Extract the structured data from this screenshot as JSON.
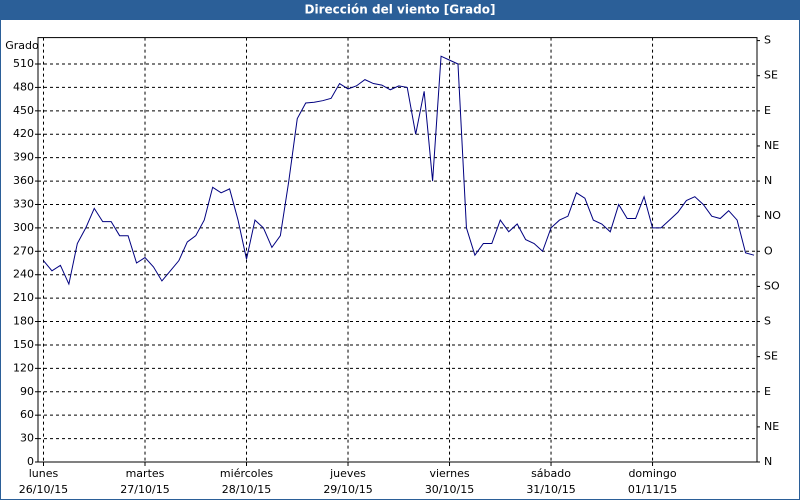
{
  "chart_data": {
    "type": "line",
    "title": "Dirección del viento [Grado]",
    "y_label": "Grado",
    "x": [
      0,
      2,
      4,
      6,
      8,
      10,
      12,
      14,
      16,
      18,
      20,
      22,
      24,
      26,
      28,
      30,
      32,
      34,
      36,
      38,
      40,
      42,
      44,
      46,
      48,
      50,
      52,
      54,
      56,
      58,
      60,
      62,
      64,
      66,
      68,
      70,
      72,
      74,
      76,
      78,
      80,
      82,
      84,
      86,
      88,
      90,
      92,
      94,
      96,
      98,
      100,
      102,
      104,
      106,
      108,
      110,
      112,
      114,
      116,
      118,
      120,
      122,
      124,
      126,
      128,
      130,
      132,
      134,
      136,
      138,
      140,
      142,
      144,
      146,
      148,
      150,
      152,
      154,
      156,
      158,
      160,
      162,
      164,
      166,
      168
    ],
    "series": [
      {
        "name": "Dirección del viento",
        "color": "#000080",
        "values": [
          258,
          245,
          252,
          228,
          280,
          300,
          325,
          308,
          308,
          290,
          290,
          255,
          262,
          250,
          232,
          245,
          258,
          282,
          290,
          310,
          352,
          345,
          350,
          310,
          260,
          310,
          300,
          275,
          290,
          360,
          440,
          460,
          461,
          463,
          466,
          485,
          478,
          482,
          490,
          485,
          483,
          477,
          482,
          480,
          420,
          475,
          360,
          520,
          515,
          510,
          300,
          265,
          280,
          280,
          310,
          295,
          305,
          285,
          280,
          270,
          300,
          310,
          315,
          345,
          338,
          310,
          305,
          295,
          330,
          312,
          312,
          340,
          300,
          300,
          310,
          320,
          335,
          340,
          330,
          315,
          312,
          322,
          310,
          268,
          265
        ]
      }
    ],
    "xlim": [
      -1.3,
      168.7
    ],
    "xticks": [
      {
        "value": 0,
        "label": "lunes",
        "date": "26/10/15"
      },
      {
        "value": 24,
        "label": "martes",
        "date": "27/10/15"
      },
      {
        "value": 48,
        "label": "miércoles",
        "date": "28/10/15"
      },
      {
        "value": 72,
        "label": "jueves",
        "date": "29/10/15"
      },
      {
        "value": 96,
        "label": "viernes",
        "date": "30/10/15"
      },
      {
        "value": 120,
        "label": "sábado",
        "date": "31/10/15"
      },
      {
        "value": 144,
        "label": "domingo",
        "date": "01/11/15"
      }
    ],
    "ylim": [
      0,
      540
    ],
    "yticks": [
      0,
      30,
      60,
      90,
      120,
      150,
      180,
      210,
      240,
      270,
      300,
      330,
      360,
      390,
      420,
      450,
      480,
      510
    ],
    "y2lim": [
      0,
      540
    ],
    "y2ticks": [
      {
        "value": 540,
        "label": "S"
      },
      {
        "value": 495,
        "label": "SE"
      },
      {
        "value": 450,
        "label": "E"
      },
      {
        "value": 405,
        "label": "NE"
      },
      {
        "value": 360,
        "label": "N"
      },
      {
        "value": 315,
        "label": "NO"
      },
      {
        "value": 270,
        "label": "O"
      },
      {
        "value": 225,
        "label": "SO"
      },
      {
        "value": 180,
        "label": "S"
      },
      {
        "value": 135,
        "label": "SE"
      },
      {
        "value": 90,
        "label": "E"
      },
      {
        "value": 45,
        "label": "NE"
      },
      {
        "value": 0,
        "label": "N"
      }
    ],
    "grid": true
  }
}
